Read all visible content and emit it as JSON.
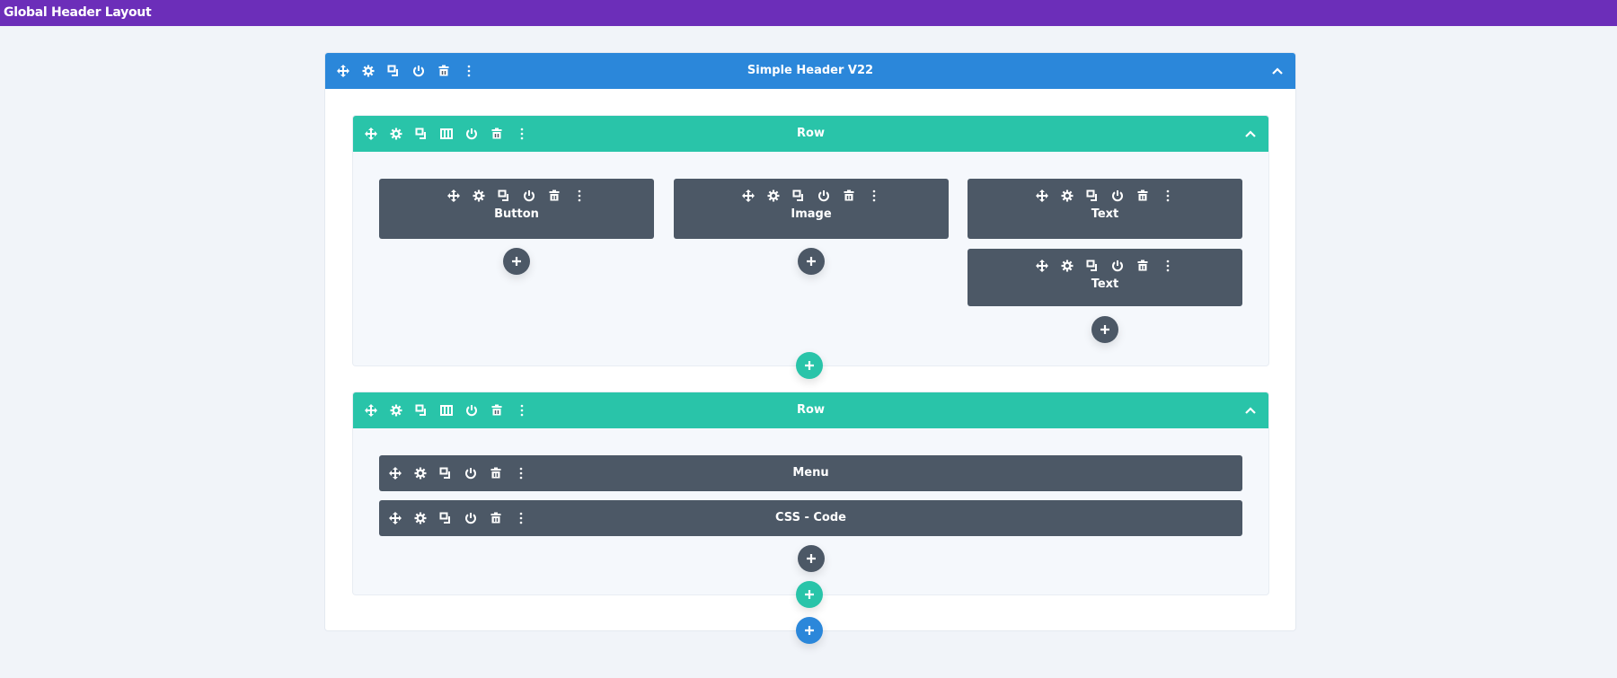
{
  "app_title": "Global Header Layout",
  "colors": {
    "topbar": "#6c2eb9",
    "section": "#2b87da",
    "row": "#29c4a9",
    "module": "#4c5866",
    "background": "#f1f4f9"
  },
  "section": {
    "title": "Simple Header V22",
    "tools": [
      "move-icon",
      "gear-icon",
      "duplicate-icon",
      "power-icon",
      "trash-icon",
      "more-vertical-icon"
    ],
    "collapse_icon": "chevron-up-icon",
    "add_icon": "plus-icon"
  },
  "row_tools": [
    "move-icon",
    "gear-icon",
    "duplicate-icon",
    "columns-icon",
    "power-icon",
    "trash-icon",
    "more-vertical-icon"
  ],
  "module_tools": [
    "move-icon",
    "gear-icon",
    "duplicate-icon",
    "power-icon",
    "trash-icon",
    "more-vertical-icon"
  ],
  "rows": [
    {
      "title": "Row",
      "columns": [
        [
          "Button"
        ],
        [
          "Image"
        ],
        [
          "Text",
          "Text"
        ]
      ]
    },
    {
      "title": "Row",
      "columns": [
        [
          "Menu",
          "CSS - Code"
        ]
      ]
    }
  ]
}
